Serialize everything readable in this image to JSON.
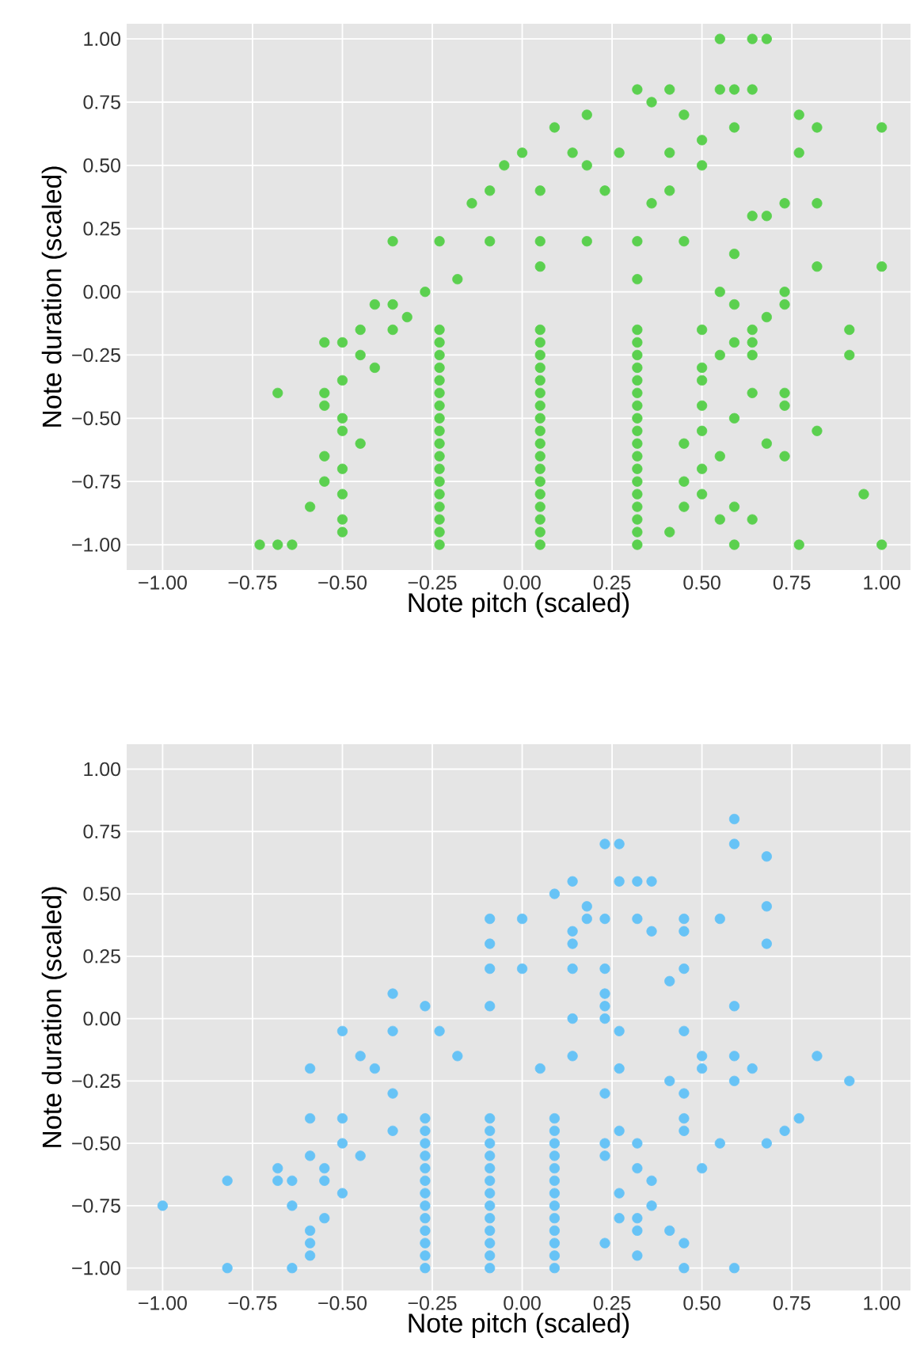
{
  "chart_data": [
    {
      "type": "scatter",
      "xlabel": "Note pitch (scaled)",
      "ylabel": "Note duration (scaled)",
      "xlim": [
        -1.1,
        1.08
      ],
      "ylim": [
        -1.1,
        1.06
      ],
      "grid": true,
      "marker": "circle",
      "xticks": [
        {
          "value": -1,
          "label": "−1.00"
        },
        {
          "value": -0.75,
          "label": "−0.75"
        },
        {
          "value": -0.5,
          "label": "−0.50"
        },
        {
          "value": -0.25,
          "label": "−0.25"
        },
        {
          "value": 0,
          "label": "0.00"
        },
        {
          "value": 0.25,
          "label": "0.25"
        },
        {
          "value": 0.5,
          "label": "0.50"
        },
        {
          "value": 0.75,
          "label": "0.75"
        },
        {
          "value": 1,
          "label": "1.00"
        }
      ],
      "yticks": [
        {
          "value": -1,
          "label": "−1.00"
        },
        {
          "value": -0.75,
          "label": "−0.75"
        },
        {
          "value": -0.5,
          "label": "−0.50"
        },
        {
          "value": -0.25,
          "label": "−0.25"
        },
        {
          "value": 0,
          "label": "0.00"
        },
        {
          "value": 0.25,
          "label": "0.25"
        },
        {
          "value": 0.5,
          "label": "0.50"
        },
        {
          "value": 0.75,
          "label": "0.75"
        },
        {
          "value": 1,
          "label": "1.00"
        }
      ],
      "series": [
        {
          "color": "#5bd04f",
          "x": [
            0.55,
            0.64,
            0.68,
            0.32,
            0.41,
            0.55,
            0.59,
            0.64,
            0.36,
            0.18,
            0.45,
            0.77,
            0.09,
            0.59,
            0.82,
            1.0,
            0.5,
            0,
            0.14,
            0.27,
            0.41,
            0.77,
            -0.05,
            0.18,
            0.5,
            -0.09,
            0.05,
            0.23,
            0.41,
            -0.14,
            0.36,
            0.73,
            0.82,
            0.64,
            0.68,
            -0.36,
            -0.23,
            -0.09,
            0.05,
            0.18,
            0.32,
            0.45,
            0.59,
            0.82,
            1.0,
            0.05,
            -0.18,
            0.32,
            -0.27,
            0.55,
            0.73,
            -0.41,
            -0.36,
            0.59,
            0.73,
            -0.32,
            0.68,
            0.91,
            -0.45,
            0.64,
            -0.55,
            0.64,
            0.91,
            0.64,
            -0.68,
            0.73,
            0.73,
            0.82,
            0.68,
            0.73,
            0.95,
            0.77,
            1.0,
            0.64,
            0.59,
            -0.73,
            -0.68,
            -0.36,
            -0.23,
            0.05,
            0.32,
            0.5,
            -0.5,
            -0.23,
            0.05,
            0.32,
            0.59,
            -0.45,
            -0.23,
            0.05,
            0.32,
            0.55,
            -0.41,
            -0.23,
            0.05,
            0.32,
            0.5,
            -0.5,
            -0.23,
            0.05,
            0.32,
            0.5,
            -0.55,
            -0.23,
            0.05,
            0.32,
            0.64,
            -0.55,
            -0.23,
            0.05,
            0.32,
            0.5,
            -0.5,
            -0.23,
            0.05,
            0.32,
            0.59,
            -0.5,
            -0.23,
            0.05,
            0.32,
            0.5,
            -0.45,
            -0.23,
            0.05,
            0.32,
            0.45,
            -0.55,
            -0.23,
            0.05,
            0.32,
            0.55,
            -0.5,
            -0.23,
            0.05,
            0.32,
            0.5,
            -0.55,
            -0.23,
            0.05,
            0.32,
            0.45,
            -0.5,
            -0.23,
            0.05,
            0.32,
            0.5,
            -0.59,
            -0.23,
            0.05,
            0.32,
            0.45,
            -0.5,
            -0.23,
            0.05,
            0.32,
            0.55,
            -0.5,
            -0.23,
            0.05,
            0.32,
            0.41,
            -0.64,
            -0.23,
            0.05,
            0.32,
            0.59
          ],
          "values": [
            1,
            1,
            1,
            0.8,
            0.8,
            0.8,
            0.8,
            0.8,
            0.75,
            0.7,
            0.7,
            0.7,
            0.65,
            0.65,
            0.65,
            0.65,
            0.6,
            0.55,
            0.55,
            0.55,
            0.55,
            0.55,
            0.5,
            0.5,
            0.5,
            0.4,
            0.4,
            0.4,
            0.4,
            0.35,
            0.35,
            0.35,
            0.35,
            0.3,
            0.3,
            0.2,
            0.2,
            0.2,
            0.2,
            0.2,
            0.2,
            0.2,
            0.15,
            0.1,
            0.1,
            0.1,
            0.05,
            0.05,
            0,
            0,
            0,
            -0.05,
            -0.05,
            -0.05,
            -0.05,
            -0.1,
            -0.1,
            -0.15,
            -0.15,
            -0.15,
            -0.2,
            -0.2,
            -0.25,
            -0.25,
            -0.4,
            -0.4,
            -0.45,
            -0.55,
            -0.6,
            -0.65,
            -0.8,
            -1,
            -1,
            -0.9,
            -0.85,
            -1,
            -1,
            -0.15,
            -0.15,
            -0.15,
            -0.15,
            -0.15,
            -0.2,
            -0.2,
            -0.2,
            -0.2,
            -0.2,
            -0.25,
            -0.25,
            -0.25,
            -0.25,
            -0.25,
            -0.3,
            -0.3,
            -0.3,
            -0.3,
            -0.3,
            -0.35,
            -0.35,
            -0.35,
            -0.35,
            -0.35,
            -0.4,
            -0.4,
            -0.4,
            -0.4,
            -0.4,
            -0.45,
            -0.45,
            -0.45,
            -0.45,
            -0.45,
            -0.5,
            -0.5,
            -0.5,
            -0.5,
            -0.5,
            -0.55,
            -0.55,
            -0.55,
            -0.55,
            -0.55,
            -0.6,
            -0.6,
            -0.6,
            -0.6,
            -0.6,
            -0.65,
            -0.65,
            -0.65,
            -0.65,
            -0.65,
            -0.7,
            -0.7,
            -0.7,
            -0.7,
            -0.7,
            -0.75,
            -0.75,
            -0.75,
            -0.75,
            -0.75,
            -0.8,
            -0.8,
            -0.8,
            -0.8,
            -0.8,
            -0.85,
            -0.85,
            -0.85,
            -0.85,
            -0.85,
            -0.9,
            -0.9,
            -0.9,
            -0.9,
            -0.9,
            -0.95,
            -0.95,
            -0.95,
            -0.95,
            -0.95,
            -1,
            -1,
            -1,
            -1,
            -1
          ]
        }
      ]
    },
    {
      "type": "scatter",
      "xlabel": "Note pitch (scaled)",
      "ylabel": "Note duration (scaled)",
      "xlim": [
        -1.1,
        1.08
      ],
      "ylim": [
        -1.09,
        1.1
      ],
      "grid": true,
      "marker": "circle",
      "xticks": [
        {
          "value": -1,
          "label": "−1.00"
        },
        {
          "value": -0.75,
          "label": "−0.75"
        },
        {
          "value": -0.5,
          "label": "−0.50"
        },
        {
          "value": -0.25,
          "label": "−0.25"
        },
        {
          "value": 0,
          "label": "0.00"
        },
        {
          "value": 0.25,
          "label": "0.25"
        },
        {
          "value": 0.5,
          "label": "0.50"
        },
        {
          "value": 0.75,
          "label": "0.75"
        },
        {
          "value": 1,
          "label": "1.00"
        }
      ],
      "yticks": [
        {
          "value": -1,
          "label": "−1.00"
        },
        {
          "value": -0.75,
          "label": "−0.75"
        },
        {
          "value": -0.5,
          "label": "−0.50"
        },
        {
          "value": -0.25,
          "label": "−0.25"
        },
        {
          "value": 0,
          "label": "0.00"
        },
        {
          "value": 0.25,
          "label": "0.25"
        },
        {
          "value": 0.5,
          "label": "0.50"
        },
        {
          "value": 0.75,
          "label": "0.75"
        },
        {
          "value": 1,
          "label": "1.00"
        }
      ],
      "series": [
        {
          "color": "#67c3f6",
          "x": [
            0.59,
            0.59,
            0.68,
            0.23,
            0.27,
            0.14,
            0.27,
            0.32,
            0.36,
            0.09,
            0.18,
            0.68,
            -0.09,
            0,
            0.18,
            0.23,
            0.32,
            0.45,
            0.55,
            0.14,
            0.36,
            0.45,
            -0.09,
            0.14,
            0.68,
            -0.09,
            0,
            0.14,
            0.23,
            0.45,
            0.41,
            0.23,
            -0.36,
            -0.27,
            -0.09,
            0.23,
            0.59,
            0.14,
            0.23,
            -0.5,
            -0.36,
            -0.23,
            0.27,
            0.45,
            -0.45,
            -0.18,
            0.14,
            0.5,
            0.59,
            0.82,
            -0.59,
            -0.41,
            0.05,
            0.27,
            0.5,
            0.64,
            0.91,
            0.41,
            0.59,
            0.23,
            0.45,
            -0.36,
            -0.59,
            0.77,
            0.73,
            0.68,
            0.55,
            0.45,
            0.32,
            -0.68,
            -0.59,
            -0.82,
            -0.68,
            -0.64,
            -1.0,
            -0.82,
            0.59,
            0.45,
            0.41,
            0.32,
            0.5,
            -0.5,
            -0.27,
            -0.09,
            0.09,
            0.45,
            -0.36,
            -0.27,
            -0.09,
            0.09,
            0.27,
            -0.5,
            -0.27,
            -0.09,
            0.09,
            0.23,
            -0.45,
            -0.27,
            -0.09,
            0.09,
            0.23,
            -0.55,
            -0.27,
            -0.09,
            0.09,
            0.32,
            -0.55,
            -0.27,
            -0.09,
            0.09,
            0.36,
            -0.5,
            -0.27,
            -0.09,
            0.09,
            0.27,
            -0.64,
            -0.27,
            -0.09,
            0.09,
            0.36,
            -0.55,
            -0.27,
            -0.09,
            0.09,
            0.27,
            -0.59,
            -0.27,
            -0.09,
            0.09,
            0.32,
            -0.59,
            -0.27,
            -0.09,
            0.09,
            0.23,
            -0.59,
            -0.27,
            -0.09,
            0.09,
            0.32,
            -0.64,
            -0.27,
            -0.09,
            0.09,
            0.45
          ],
          "values": [
            0.8,
            0.7,
            0.65,
            0.7,
            0.7,
            0.55,
            0.55,
            0.55,
            0.55,
            0.5,
            0.45,
            0.45,
            0.4,
            0.4,
            0.4,
            0.4,
            0.4,
            0.4,
            0.4,
            0.35,
            0.35,
            0.35,
            0.3,
            0.3,
            0.3,
            0.2,
            0.2,
            0.2,
            0.2,
            0.2,
            0.15,
            0.1,
            0.1,
            0.05,
            0.05,
            0.05,
            0.05,
            0,
            0,
            -0.05,
            -0.05,
            -0.05,
            -0.05,
            -0.05,
            -0.15,
            -0.15,
            -0.15,
            -0.15,
            -0.15,
            -0.15,
            -0.2,
            -0.2,
            -0.2,
            -0.2,
            -0.2,
            -0.2,
            -0.25,
            -0.25,
            -0.25,
            -0.3,
            -0.3,
            -0.3,
            -0.4,
            -0.4,
            -0.45,
            -0.5,
            -0.5,
            -0.45,
            -0.5,
            -0.6,
            -0.55,
            -0.65,
            -0.65,
            -0.65,
            -0.75,
            -1,
            -1,
            -0.9,
            -0.85,
            -0.8,
            -0.6,
            -0.4,
            -0.4,
            -0.4,
            -0.4,
            -0.4,
            -0.45,
            -0.45,
            -0.45,
            -0.45,
            -0.45,
            -0.5,
            -0.5,
            -0.5,
            -0.5,
            -0.5,
            -0.55,
            -0.55,
            -0.55,
            -0.55,
            -0.55,
            -0.6,
            -0.6,
            -0.6,
            -0.6,
            -0.6,
            -0.65,
            -0.65,
            -0.65,
            -0.65,
            -0.65,
            -0.7,
            -0.7,
            -0.7,
            -0.7,
            -0.7,
            -0.75,
            -0.75,
            -0.75,
            -0.75,
            -0.75,
            -0.8,
            -0.8,
            -0.8,
            -0.8,
            -0.8,
            -0.85,
            -0.85,
            -0.85,
            -0.85,
            -0.85,
            -0.9,
            -0.9,
            -0.9,
            -0.9,
            -0.9,
            -0.95,
            -0.95,
            -0.95,
            -0.95,
            -0.95,
            -1,
            -1,
            -1,
            -1,
            -1
          ]
        }
      ]
    }
  ]
}
